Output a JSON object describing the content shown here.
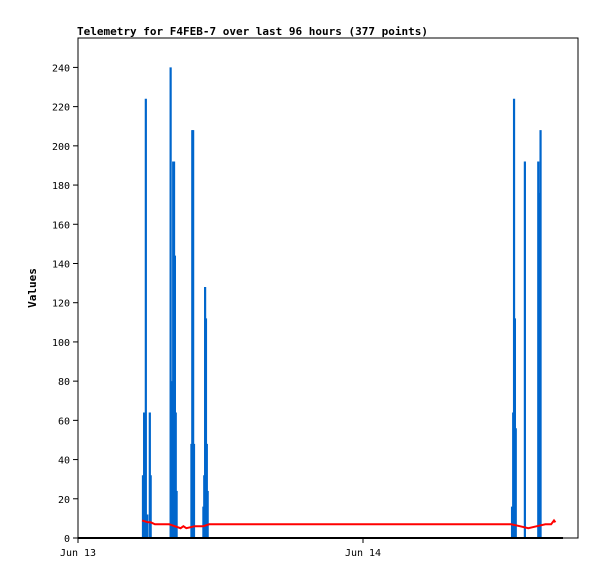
{
  "chart_data": {
    "type": "line",
    "title": "Telemetry for F4FEB-7 over last 96 hours (377 points)",
    "ylabel": "Values",
    "xlabel": "",
    "ylim": [
      0,
      255
    ],
    "xlim": [
      0,
      1.7
    ],
    "y_ticks": [
      0,
      20,
      40,
      60,
      80,
      100,
      120,
      140,
      160,
      180,
      200,
      220,
      240
    ],
    "x_ticks": [
      {
        "value": 0,
        "label": "Jun 13"
      },
      {
        "value": 1,
        "label": "Jun 14"
      }
    ],
    "grid": false,
    "colors": {
      "bars": "#0066cc",
      "average": "#ff0000",
      "baseline": "#000000"
    },
    "series": [
      {
        "type": "bar",
        "values": [
          [
            0.228,
            32
          ],
          [
            0.23,
            16
          ],
          [
            0.232,
            64
          ],
          [
            0.235,
            64
          ],
          [
            0.238,
            224
          ],
          [
            0.243,
            12
          ],
          [
            0.252,
            64
          ],
          [
            0.255,
            32
          ],
          [
            0.325,
            240
          ],
          [
            0.328,
            80
          ],
          [
            0.331,
            64
          ],
          [
            0.334,
            192
          ],
          [
            0.337,
            192
          ],
          [
            0.34,
            144
          ],
          [
            0.343,
            64
          ],
          [
            0.346,
            24
          ],
          [
            0.398,
            48
          ],
          [
            0.401,
            208
          ],
          [
            0.404,
            208
          ],
          [
            0.407,
            48
          ],
          [
            0.44,
            16
          ],
          [
            0.443,
            32
          ],
          [
            0.446,
            128
          ],
          [
            0.449,
            112
          ],
          [
            0.452,
            48
          ],
          [
            0.455,
            24
          ],
          [
            1.523,
            16
          ],
          [
            1.527,
            64
          ],
          [
            1.53,
            224
          ],
          [
            1.533,
            112
          ],
          [
            1.536,
            56
          ],
          [
            1.568,
            192
          ],
          [
            1.615,
            192
          ],
          [
            1.619,
            176
          ],
          [
            1.623,
            208
          ]
        ]
      },
      {
        "type": "line",
        "values": [
          [
            0.225,
            9
          ],
          [
            0.245,
            8
          ],
          [
            0.255,
            8
          ],
          [
            0.27,
            7
          ],
          [
            0.32,
            7
          ],
          [
            0.36,
            5
          ],
          [
            0.37,
            6
          ],
          [
            0.38,
            5
          ],
          [
            0.41,
            6
          ],
          [
            0.44,
            6
          ],
          [
            0.46,
            7
          ],
          [
            0.7,
            7
          ],
          [
            1.0,
            7
          ],
          [
            1.3,
            7
          ],
          [
            1.52,
            7
          ],
          [
            1.55,
            6
          ],
          [
            1.58,
            5
          ],
          [
            1.61,
            6
          ],
          [
            1.64,
            7
          ],
          [
            1.66,
            7
          ],
          [
            1.67,
            9
          ],
          [
            1.675,
            8
          ]
        ]
      }
    ]
  }
}
